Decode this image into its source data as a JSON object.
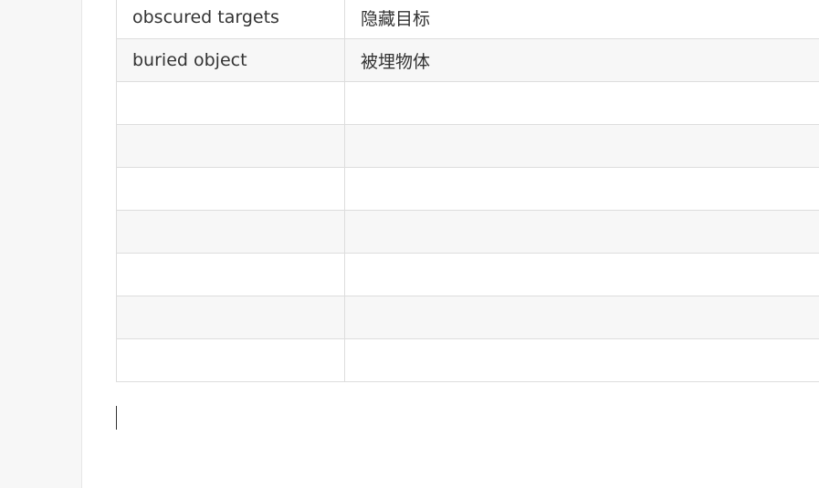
{
  "table": {
    "rows": [
      {
        "term_en": "obscured targets",
        "term_zh": "隐藏目标"
      },
      {
        "term_en": "buried object",
        "term_zh": "被埋物体"
      },
      {
        "term_en": "",
        "term_zh": ""
      },
      {
        "term_en": "",
        "term_zh": ""
      },
      {
        "term_en": "",
        "term_zh": ""
      },
      {
        "term_en": "",
        "term_zh": ""
      },
      {
        "term_en": "",
        "term_zh": ""
      },
      {
        "term_en": "",
        "term_zh": ""
      },
      {
        "term_en": "",
        "term_zh": ""
      }
    ]
  },
  "colors": {
    "border": "#dddddd",
    "alt_row": "#f7f7f7",
    "text": "#333333",
    "gutter": "#f7f7f7"
  }
}
